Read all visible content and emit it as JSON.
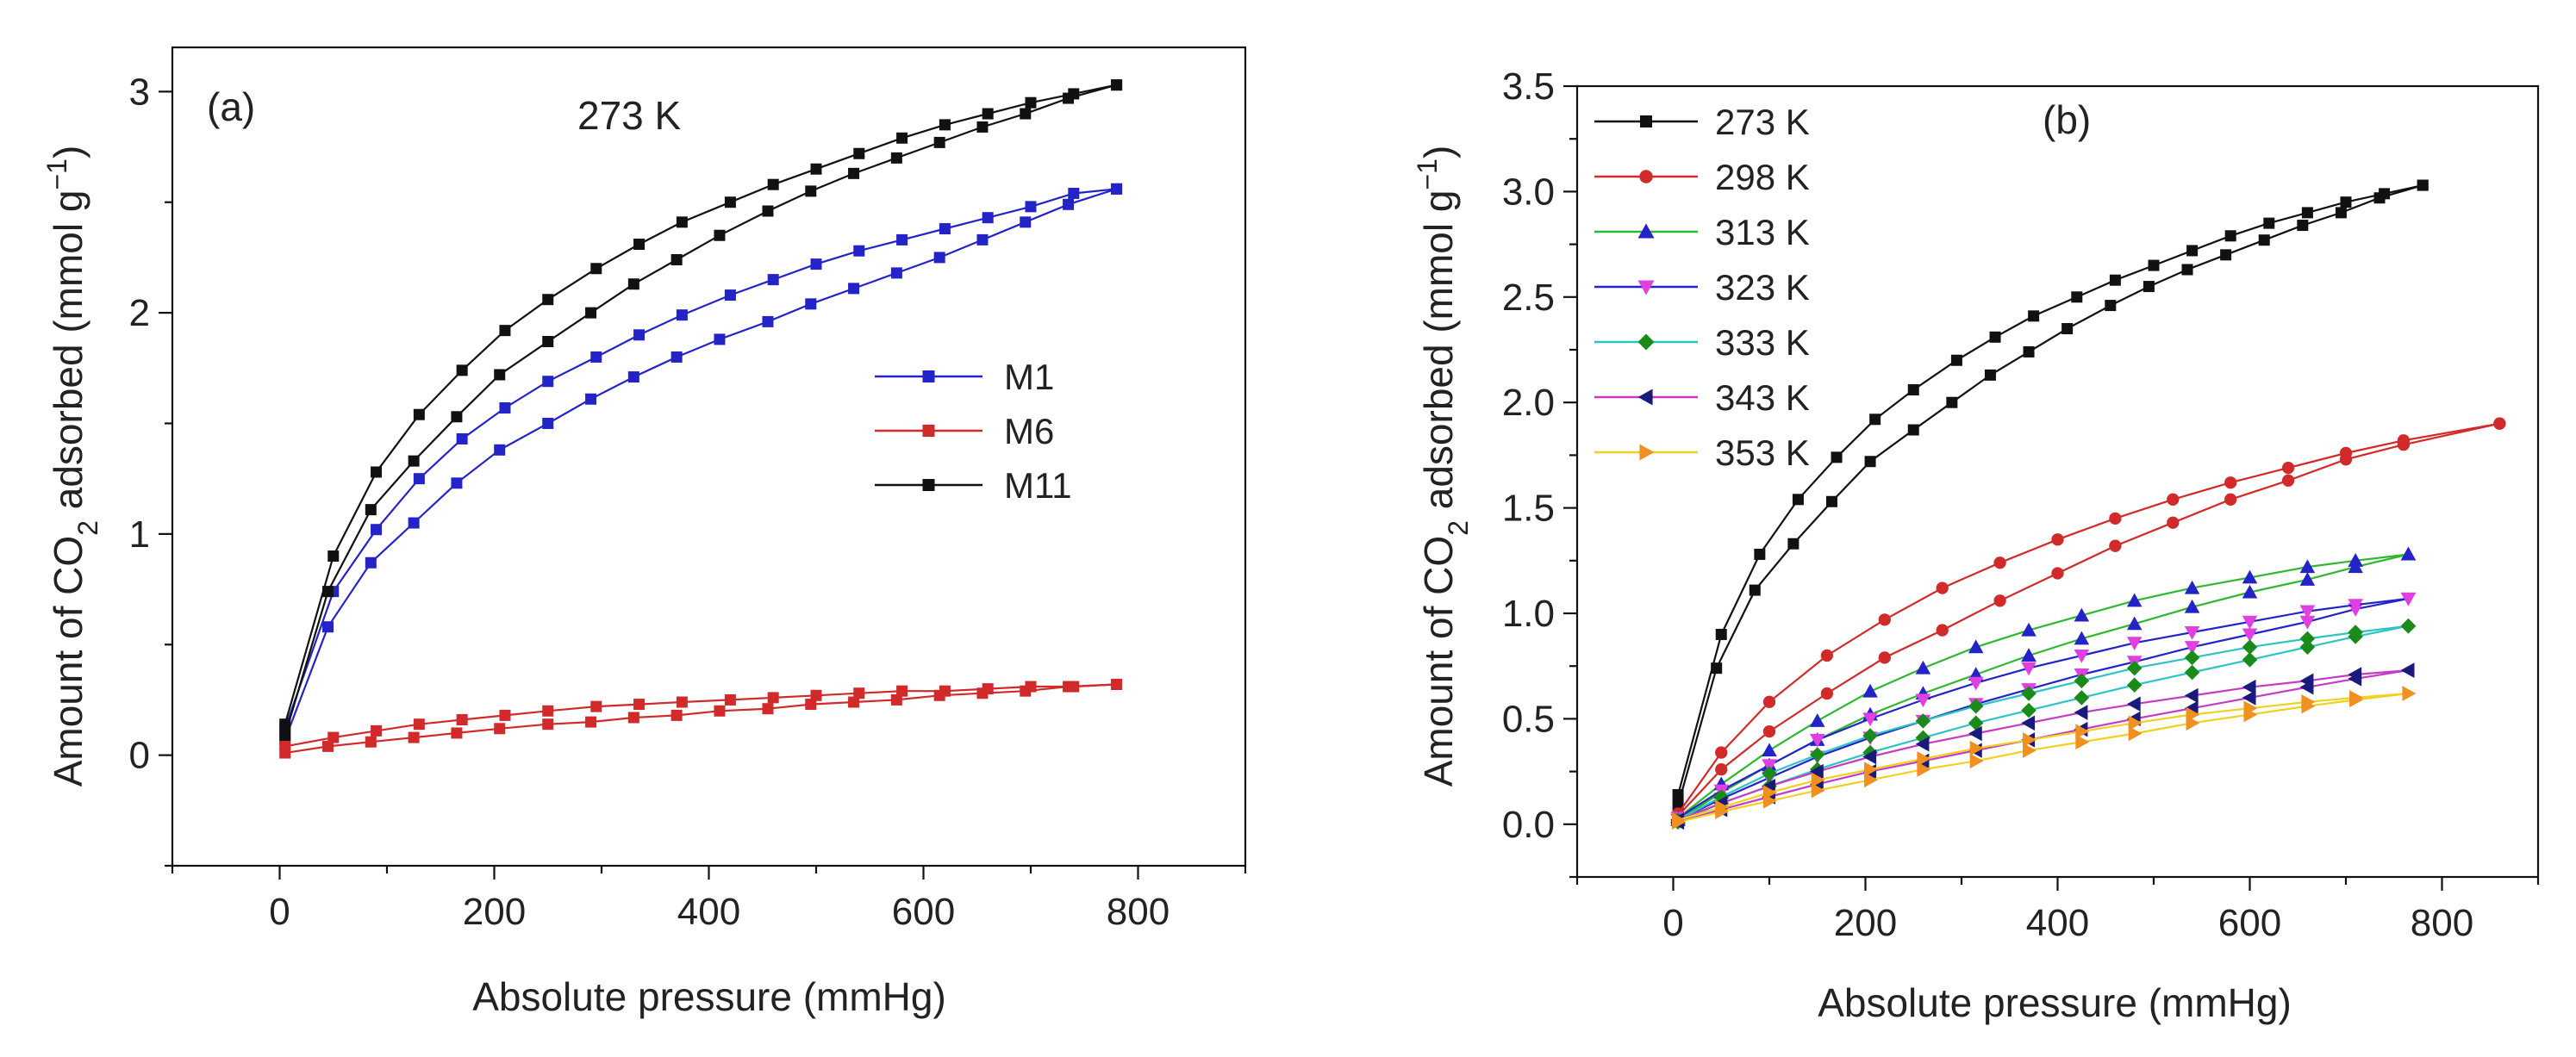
{
  "chart_data": [
    {
      "type": "line",
      "panel_label": "(a)",
      "annotation": "273 K",
      "xlabel": "Absolute pressure (mmHg)",
      "ylabel_parts": {
        "pre": "Amount of CO",
        "sub": "2",
        "mid": " adsorbed (mmol g",
        "sup": "−1",
        "post": ")"
      },
      "xlim": [
        -100,
        900
      ],
      "ylim": [
        -0.5,
        3.2
      ],
      "xticks": [
        0,
        200,
        400,
        600,
        800
      ],
      "xtick_labels": [
        "0",
        "200",
        "400",
        "600",
        "800"
      ],
      "yticks": [
        0,
        1,
        2,
        3
      ],
      "ytick_labels": [
        "0",
        "1",
        "2",
        "3"
      ],
      "legend_position": "center-right",
      "series": [
        {
          "name": "M1",
          "color": "#2323c8",
          "marker": "square",
          "adsorption": {
            "x": [
              5,
              45,
              85,
              125,
              165,
              205,
              250,
              290,
              330,
              370,
              410,
              455,
              495,
              535,
              575,
              615,
              655,
              695,
              735,
              780
            ],
            "y": [
              0.07,
              0.58,
              0.87,
              1.05,
              1.23,
              1.38,
              1.5,
              1.61,
              1.71,
              1.8,
              1.88,
              1.96,
              2.04,
              2.11,
              2.18,
              2.25,
              2.33,
              2.41,
              2.49,
              2.56
            ]
          },
          "desorption": {
            "x": [
              780,
              740,
              700,
              660,
              620,
              580,
              540,
              500,
              460,
              420,
              375,
              335,
              295,
              250,
              210,
              170,
              130,
              90,
              50,
              5
            ],
            "y": [
              2.56,
              2.54,
              2.48,
              2.43,
              2.38,
              2.33,
              2.28,
              2.22,
              2.15,
              2.08,
              1.99,
              1.9,
              1.8,
              1.69,
              1.57,
              1.43,
              1.25,
              1.02,
              0.74,
              0.12
            ]
          }
        },
        {
          "name": "M6",
          "color": "#d12a2a",
          "marker": "square",
          "adsorption": {
            "x": [
              5,
              45,
              85,
              125,
              165,
              205,
              250,
              290,
              330,
              370,
              410,
              455,
              495,
              535,
              575,
              615,
              655,
              695,
              735,
              780
            ],
            "y": [
              0.01,
              0.04,
              0.06,
              0.08,
              0.1,
              0.12,
              0.14,
              0.15,
              0.17,
              0.18,
              0.2,
              0.21,
              0.23,
              0.24,
              0.25,
              0.27,
              0.28,
              0.29,
              0.31,
              0.32
            ]
          },
          "desorption": {
            "x": [
              780,
              740,
              700,
              660,
              620,
              580,
              540,
              500,
              460,
              420,
              375,
              335,
              295,
              250,
              210,
              170,
              130,
              90,
              50,
              5
            ],
            "y": [
              0.32,
              0.31,
              0.31,
              0.3,
              0.29,
              0.29,
              0.28,
              0.27,
              0.26,
              0.25,
              0.24,
              0.23,
              0.22,
              0.2,
              0.18,
              0.16,
              0.14,
              0.11,
              0.08,
              0.04
            ]
          }
        },
        {
          "name": "M11",
          "color": "#111111",
          "marker": "square",
          "adsorption": {
            "x": [
              5,
              45,
              85,
              125,
              165,
              205,
              250,
              290,
              330,
              370,
              410,
              455,
              495,
              535,
              575,
              615,
              655,
              695,
              735,
              780
            ],
            "y": [
              0.09,
              0.74,
              1.11,
              1.33,
              1.53,
              1.72,
              1.87,
              2.0,
              2.13,
              2.24,
              2.35,
              2.46,
              2.55,
              2.63,
              2.7,
              2.77,
              2.84,
              2.9,
              2.97,
              3.03
            ]
          },
          "desorption": {
            "x": [
              780,
              740,
              700,
              660,
              620,
              580,
              540,
              500,
              460,
              420,
              375,
              335,
              295,
              250,
              210,
              170,
              130,
              90,
              50,
              5
            ],
            "y": [
              3.03,
              2.99,
              2.95,
              2.9,
              2.85,
              2.79,
              2.72,
              2.65,
              2.58,
              2.5,
              2.41,
              2.31,
              2.2,
              2.06,
              1.92,
              1.74,
              1.54,
              1.28,
              0.9,
              0.14
            ]
          }
        }
      ]
    },
    {
      "type": "line",
      "panel_label": "(b)",
      "xlabel": "Absolute pressure (mmHg)",
      "ylabel_parts": {
        "pre": "Amount of CO",
        "sub": "2",
        "mid": " adsorbed (mmol g",
        "sup": "−1",
        "post": ")"
      },
      "xlim": [
        -100,
        900
      ],
      "ylim": [
        -0.25,
        3.5
      ],
      "xticks": [
        0,
        200,
        400,
        600,
        800
      ],
      "xtick_labels": [
        "0",
        "200",
        "400",
        "600",
        "800"
      ],
      "yticks": [
        0.0,
        0.5,
        1.0,
        1.5,
        2.0,
        2.5,
        3.0,
        3.5
      ],
      "ytick_labels": [
        "0.0",
        "0.5",
        "1.0",
        "1.5",
        "2.0",
        "2.5",
        "3.0",
        "3.5"
      ],
      "legend_position": "top-left",
      "series": [
        {
          "name": "273 K",
          "color": "#111111",
          "marker": "square",
          "adsorption": {
            "x": [
              5,
              45,
              85,
              125,
              165,
              205,
              250,
              290,
              330,
              370,
              410,
              455,
              495,
              535,
              575,
              615,
              655,
              695,
              735,
              780
            ],
            "y": [
              0.09,
              0.74,
              1.11,
              1.33,
              1.53,
              1.72,
              1.87,
              2.0,
              2.13,
              2.24,
              2.35,
              2.46,
              2.55,
              2.63,
              2.7,
              2.77,
              2.84,
              2.9,
              2.97,
              3.03
            ]
          },
          "desorption": {
            "x": [
              780,
              740,
              700,
              660,
              620,
              580,
              540,
              500,
              460,
              420,
              375,
              335,
              295,
              250,
              210,
              170,
              130,
              90,
              50,
              5
            ],
            "y": [
              3.03,
              2.99,
              2.95,
              2.9,
              2.85,
              2.79,
              2.72,
              2.65,
              2.58,
              2.5,
              2.41,
              2.31,
              2.2,
              2.06,
              1.92,
              1.74,
              1.54,
              1.28,
              0.9,
              0.14
            ]
          }
        },
        {
          "name": "298 K",
          "color": "#d12a2a",
          "marker": "circle",
          "adsorption": {
            "x": [
              5,
              50,
              100,
              160,
              220,
              280,
              340,
              400,
              460,
              520,
              580,
              640,
              700,
              760,
              860
            ],
            "y": [
              0.04,
              0.26,
              0.44,
              0.62,
              0.79,
              0.92,
              1.06,
              1.19,
              1.32,
              1.43,
              1.54,
              1.63,
              1.73,
              1.8,
              1.9
            ]
          },
          "desorption": {
            "x": [
              860,
              760,
              700,
              640,
              580,
              520,
              460,
              400,
              340,
              280,
              220,
              160,
              100,
              50,
              5
            ],
            "y": [
              1.9,
              1.82,
              1.76,
              1.69,
              1.62,
              1.54,
              1.45,
              1.35,
              1.24,
              1.12,
              0.97,
              0.8,
              0.58,
              0.34,
              0.05
            ]
          }
        },
        {
          "name": "313 K",
          "color": "#2fb82f",
          "marker": "triangle-up",
          "marker_color": "#2323c8",
          "adsorption": {
            "x": [
              5,
              50,
              100,
              150,
              205,
              260,
              315,
              370,
              425,
              480,
              540,
              600,
              660,
              710,
              765
            ],
            "y": [
              0.02,
              0.15,
              0.28,
              0.4,
              0.52,
              0.62,
              0.71,
              0.8,
              0.88,
              0.95,
              1.03,
              1.1,
              1.16,
              1.22,
              1.28
            ]
          },
          "desorption": {
            "x": [
              765,
              710,
              660,
              600,
              540,
              480,
              425,
              370,
              315,
              260,
              205,
              150,
              100,
              50,
              5
            ],
            "y": [
              1.28,
              1.25,
              1.22,
              1.17,
              1.12,
              1.06,
              0.99,
              0.92,
              0.84,
              0.74,
              0.63,
              0.49,
              0.35,
              0.19,
              0.03
            ]
          }
        },
        {
          "name": "323 K",
          "color": "#2323c8",
          "marker": "triangle-down",
          "marker_color": "#e040e0",
          "adsorption": {
            "x": [
              5,
              50,
              100,
              150,
              205,
              260,
              315,
              370,
              425,
              480,
              540,
              600,
              660,
              710,
              765
            ],
            "y": [
              0.02,
              0.12,
              0.22,
              0.32,
              0.41,
              0.49,
              0.57,
              0.64,
              0.71,
              0.77,
              0.84,
              0.9,
              0.96,
              1.02,
              1.07
            ]
          },
          "desorption": {
            "x": [
              765,
              710,
              660,
              600,
              540,
              480,
              425,
              370,
              315,
              260,
              205,
              150,
              100,
              50,
              5
            ],
            "y": [
              1.07,
              1.04,
              1.01,
              0.96,
              0.91,
              0.86,
              0.8,
              0.74,
              0.67,
              0.59,
              0.5,
              0.4,
              0.28,
              0.16,
              0.03
            ]
          }
        },
        {
          "name": "333 K",
          "color": "#2ec4c4",
          "marker": "diamond",
          "marker_color": "#1a8a1a",
          "adsorption": {
            "x": [
              5,
              50,
              100,
              150,
              205,
              260,
              315,
              370,
              425,
              480,
              540,
              600,
              660,
              710,
              765
            ],
            "y": [
              0.01,
              0.1,
              0.18,
              0.26,
              0.34,
              0.41,
              0.48,
              0.54,
              0.6,
              0.66,
              0.72,
              0.78,
              0.84,
              0.89,
              0.94
            ]
          },
          "desorption": {
            "x": [
              765,
              710,
              660,
              600,
              540,
              480,
              425,
              370,
              315,
              260,
              205,
              150,
              100,
              50,
              5
            ],
            "y": [
              0.94,
              0.91,
              0.88,
              0.84,
              0.79,
              0.74,
              0.68,
              0.62,
              0.56,
              0.49,
              0.42,
              0.33,
              0.24,
              0.13,
              0.02
            ]
          }
        },
        {
          "name": "343 K",
          "color": "#c43cc4",
          "marker": "triangle-left",
          "marker_color": "#1a1a7a",
          "adsorption": {
            "x": [
              5,
              50,
              100,
              150,
              205,
              260,
              315,
              370,
              425,
              480,
              540,
              600,
              660,
              710,
              765
            ],
            "y": [
              0.01,
              0.07,
              0.13,
              0.19,
              0.25,
              0.3,
              0.35,
              0.4,
              0.45,
              0.5,
              0.55,
              0.6,
              0.65,
              0.69,
              0.73
            ]
          },
          "desorption": {
            "x": [
              765,
              710,
              660,
              600,
              540,
              480,
              425,
              370,
              315,
              260,
              205,
              150,
              100,
              50,
              5
            ],
            "y": [
              0.73,
              0.71,
              0.68,
              0.65,
              0.61,
              0.57,
              0.53,
              0.48,
              0.43,
              0.38,
              0.32,
              0.25,
              0.18,
              0.1,
              0.02
            ]
          }
        },
        {
          "name": "353 K",
          "color": "#f0d020",
          "marker": "triangle-right",
          "marker_color": "#f09020",
          "adsorption": {
            "x": [
              5,
              50,
              100,
              150,
              205,
              260,
              315,
              370,
              425,
              480,
              540,
              600,
              660,
              710,
              765
            ],
            "y": [
              0.01,
              0.06,
              0.11,
              0.16,
              0.21,
              0.26,
              0.3,
              0.35,
              0.39,
              0.43,
              0.48,
              0.52,
              0.56,
              0.59,
              0.62
            ]
          },
          "desorption": {
            "x": [
              765,
              710,
              660,
              600,
              540,
              480,
              425,
              370,
              315,
              260,
              205,
              150,
              100,
              50,
              5
            ],
            "y": [
              0.62,
              0.6,
              0.58,
              0.55,
              0.52,
              0.48,
              0.44,
              0.4,
              0.36,
              0.31,
              0.26,
              0.21,
              0.15,
              0.08,
              0.02
            ]
          }
        }
      ]
    }
  ]
}
